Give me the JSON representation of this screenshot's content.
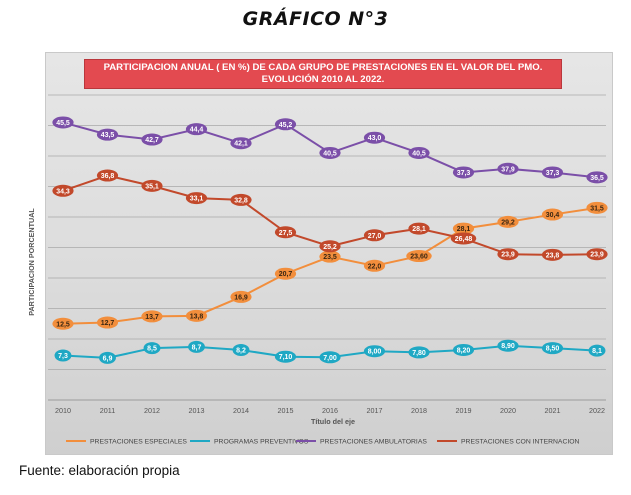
{
  "page": {
    "heading": "GRÁFICO N°3",
    "source": "Fuente: elaboración propia"
  },
  "chart_data": {
    "type": "line",
    "title_line1": "PARTICIPACION ANUAL ( EN %) DE CADA GRUPO DE PRESTACIONES EN EL VALOR DEL PMO.",
    "title_line2": "EVOLUCIÓN 2010 AL 2022.",
    "xlabel": "Título del eje",
    "ylabel": "PARTICIPACION PORCENTUAL",
    "x": [
      "2010",
      "2011",
      "2012",
      "2013",
      "2014",
      "2015",
      "2016",
      "2017",
      "2018",
      "2019",
      "2020",
      "2021",
      "2022"
    ],
    "ylim": [
      0,
      50
    ],
    "grid": true,
    "legend_position": "bottom",
    "series": [
      {
        "name": "PRESTACIONES ESPECIALES",
        "color": "#f28e3c",
        "values": [
          12.5,
          12.7,
          13.7,
          13.8,
          16.9,
          20.7,
          23.5,
          22.0,
          23.6,
          28.1,
          29.2,
          30.4,
          31.5
        ],
        "labels": [
          "12,5",
          "12,7",
          "13,7",
          "13,8",
          "16,9",
          "20,7",
          "23,5",
          "22,0",
          "23,60",
          "28,1",
          "29,2",
          "30,4",
          "31,5"
        ]
      },
      {
        "name": "PROGRAMAS PREVENTIVOS",
        "color": "#1fa8c4",
        "values": [
          7.3,
          6.9,
          8.5,
          8.7,
          8.2,
          7.1,
          7.0,
          8.0,
          7.8,
          8.2,
          8.9,
          8.5,
          8.1
        ],
        "labels": [
          "7,3",
          "6,9",
          "8,5",
          "8,7",
          "8,2",
          "7,10",
          "7,00",
          "8,00",
          "7,80",
          "8,20",
          "8,90",
          "8,50",
          "8,1"
        ]
      },
      {
        "name": "PRESTACIONES AMBULATORIAS",
        "color": "#7b4fa8",
        "values": [
          45.5,
          43.5,
          42.7,
          44.4,
          42.1,
          45.2,
          40.5,
          43.0,
          40.5,
          37.3,
          37.9,
          37.3,
          36.5
        ],
        "labels": [
          "45,5",
          "43,5",
          "42,7",
          "44,4",
          "42,1",
          "45,2",
          "40,5",
          "43,0",
          "40,5",
          "37,3",
          "37,9",
          "37,3",
          "36,5"
        ]
      },
      {
        "name": "PRESTACIONES CON INTERNACION",
        "color": "#c2492b",
        "values": [
          34.3,
          36.8,
          35.1,
          33.1,
          32.8,
          27.5,
          25.2,
          27.0,
          28.1,
          26.48,
          23.9,
          23.8,
          23.9
        ],
        "labels": [
          "34,3",
          "36,8",
          "35,1",
          "33,1",
          "32,8",
          "27,5",
          "25,2",
          "27,0",
          "28,1",
          "26,48",
          "23,9",
          "23,8",
          "23,9"
        ]
      }
    ]
  }
}
